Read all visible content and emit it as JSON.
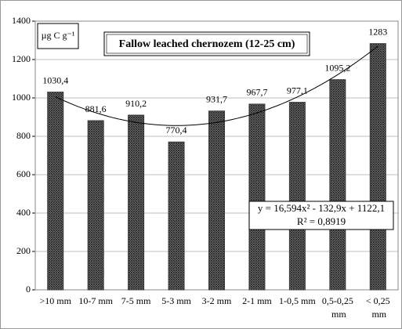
{
  "chart_data": {
    "type": "bar",
    "title": "Fallow leached chernozem (12-25 cm)",
    "unit_label": "µg C g⁻¹",
    "categories": [
      ">10 mm",
      "10-7 mm",
      "7-5 mm",
      "5-3 mm",
      "3-2 mm",
      "2-1 mm",
      "1-0,5 mm",
      "0,5-0,25 mm",
      "< 0,25 mm"
    ],
    "values": [
      1030.4,
      881.6,
      910.2,
      770.4,
      931.7,
      967.7,
      977.1,
      1095.2,
      1283
    ],
    "value_labels": [
      "1030,4",
      "881,6",
      "910,2",
      "770,4",
      "931,7",
      "967,7",
      "977,1",
      "1095,2",
      "1283"
    ],
    "color": "#3a3a3a",
    "ylim": [
      0,
      1400
    ],
    "yticks": [
      0,
      200,
      400,
      600,
      800,
      1000,
      1200,
      1400
    ],
    "grid": true,
    "trendline": {
      "coefficients": [
        16.594,
        -132.9,
        1122.1
      ],
      "equation": "y = 16,594x² - 132,9x + 1122,1",
      "r2": 0.8919,
      "r2_label": "R² = 0,8919"
    }
  }
}
